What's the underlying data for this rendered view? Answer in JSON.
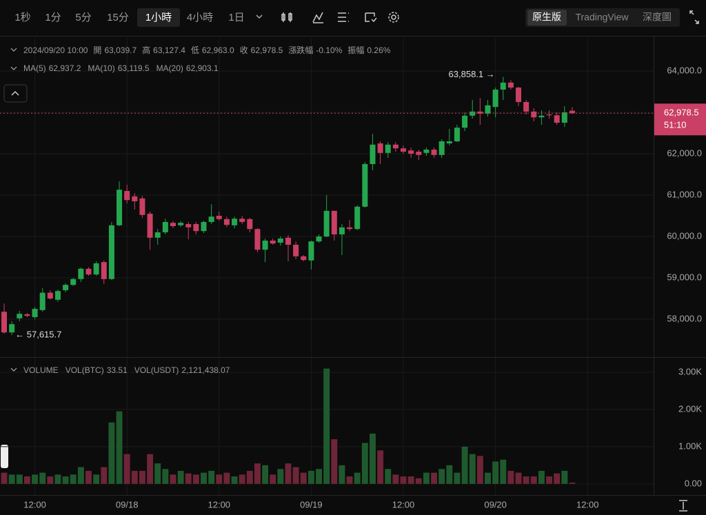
{
  "toolbar": {
    "intervals": [
      "1秒",
      "1分",
      "5分",
      "15分",
      "1小時",
      "4小時",
      "1日"
    ],
    "active_interval": 4,
    "views": [
      "原生版",
      "TradingView",
      "深度圖"
    ],
    "active_view": 0
  },
  "chart_data": {
    "type": "candlestick",
    "info": {
      "time": "2024/09/20 10:00",
      "fields": [
        {
          "label": "開",
          "value": "63,039.7"
        },
        {
          "label": "高",
          "value": "63,127.4"
        },
        {
          "label": "低",
          "value": "62,963.0"
        },
        {
          "label": "收",
          "value": "62,978.5"
        },
        {
          "label": "漲跌幅",
          "value": "-0.10%"
        },
        {
          "label": "振幅",
          "value": "0.26%"
        }
      ]
    },
    "ma": [
      {
        "name": "MA(5)",
        "value": "62,937.2",
        "color": "#f0a431"
      },
      {
        "name": "MA(10)",
        "value": "63,119.5",
        "color": "#e0456b"
      },
      {
        "name": "MA(20)",
        "value": "62,903.1",
        "color": "#3fb8d8"
      }
    ],
    "volume_legend": {
      "title": "VOLUME",
      "fields": [
        {
          "label": "VOL(BTC)",
          "value": "33.51"
        },
        {
          "label": "VOL(USDT)",
          "value": "2,121,438.07"
        }
      ]
    },
    "open": [
      58180,
      57680,
      58020,
      58120,
      58050,
      58220,
      58640,
      58470,
      58700,
      58830,
      58970,
      59220,
      59080,
      59380,
      58970,
      60270,
      61100,
      60970,
      60920,
      60550,
      59970,
      60100,
      60330,
      60270,
      60300,
      60300,
      60130,
      60350,
      60500,
      60420,
      60270,
      60430,
      60420,
      60180,
      59680,
      59900,
      59850,
      59970,
      59800,
      59520,
      59420,
      59880,
      60000,
      60620,
      60050,
      60220,
      60180,
      60720,
      61750,
      62250,
      62020,
      62220,
      62130,
      62080,
      62050,
      62020,
      62100,
      61970,
      62250,
      62300,
      62630,
      62920,
      63020,
      62970,
      63130,
      63550,
      63720,
      63600,
      63250,
      63020,
      62880,
      62950,
      62930,
      62750,
      63039.7
    ],
    "high": [
      58380,
      57950,
      58200,
      58150,
      58300,
      58750,
      58700,
      58720,
      58870,
      59000,
      59250,
      59260,
      59400,
      59420,
      60350,
      61330,
      61250,
      61050,
      60980,
      60600,
      60180,
      60430,
      60370,
      60370,
      60350,
      60350,
      60380,
      60780,
      60600,
      60480,
      60480,
      60500,
      60450,
      60200,
      59950,
      59950,
      60000,
      60030,
      59880,
      59550,
      59900,
      60050,
      61000,
      60620,
      60300,
      60400,
      60750,
      61800,
      62480,
      62300,
      62280,
      62280,
      62200,
      62150,
      62100,
      62150,
      62150,
      62350,
      62600,
      62700,
      63000,
      63300,
      63350,
      63300,
      63600,
      63858.1,
      63780,
      63620,
      63300,
      63100,
      63050,
      63050,
      63000,
      63150,
      63127.4
    ],
    "low": [
      57650,
      57615.7,
      57950,
      58050,
      58000,
      58180,
      58470,
      58420,
      58650,
      58800,
      58900,
      59050,
      59050,
      58850,
      58950,
      60250,
      60800,
      60650,
      60450,
      59680,
      59800,
      60050,
      60200,
      60230,
      59930,
      60050,
      60080,
      60300,
      60380,
      60230,
      60200,
      60300,
      60100,
      59620,
      59380,
      59800,
      59780,
      59400,
      59450,
      59400,
      59200,
      59850,
      59980,
      59900,
      59550,
      60130,
      60150,
      60700,
      61600,
      61750,
      61900,
      62050,
      62000,
      61900,
      61850,
      61950,
      61900,
      61900,
      62200,
      62280,
      62550,
      62850,
      62700,
      62900,
      62880,
      63300,
      63550,
      63150,
      62950,
      62780,
      62700,
      62850,
      62700,
      62650,
      62963.0
    ],
    "close": [
      57680,
      57880,
      58130,
      58080,
      58250,
      58640,
      58500,
      58680,
      58830,
      58970,
      59220,
      59080,
      59350,
      58970,
      60270,
      61130,
      60880,
      60850,
      60520,
      59970,
      60100,
      60350,
      60250,
      60330,
      60220,
      60130,
      60350,
      60480,
      60420,
      60280,
      60430,
      60350,
      60180,
      59680,
      59900,
      59830,
      59950,
      59800,
      59520,
      59430,
      59880,
      60000,
      60620,
      60050,
      60220,
      60180,
      60720,
      61750,
      62220,
      62020,
      62220,
      62130,
      62050,
      62000,
      61970,
      62100,
      61970,
      62300,
      62300,
      62630,
      62920,
      63020,
      62970,
      63170,
      63550,
      63720,
      63600,
      63250,
      63020,
      62880,
      62920,
      62930,
      62750,
      63000,
      62978.5
    ],
    "volume": [
      300,
      250,
      250,
      200,
      250,
      300,
      200,
      250,
      200,
      250,
      450,
      350,
      250,
      450,
      1650,
      1950,
      800,
      350,
      350,
      800,
      550,
      400,
      250,
      350,
      280,
      250,
      300,
      350,
      250,
      300,
      200,
      250,
      350,
      550,
      500,
      250,
      400,
      550,
      450,
      300,
      350,
      400,
      3100,
      1200,
      500,
      200,
      300,
      1100,
      1350,
      900,
      400,
      250,
      200,
      200,
      150,
      300,
      300,
      400,
      500,
      300,
      1000,
      800,
      750,
      300,
      600,
      650,
      350,
      300,
      200,
      200,
      350,
      200,
      280,
      350,
      33.51
    ],
    "up_color": "#25a750",
    "down_color": "#ca3f64",
    "volume_up_color": "#1f5a2e",
    "volume_down_color": "#6e2538",
    "xlim": [
      -0.54,
      84.6
    ],
    "xticks": [
      {
        "value": 4,
        "label": "12:00"
      },
      {
        "value": 16,
        "label": "09/18"
      },
      {
        "value": 28,
        "label": "12:00"
      },
      {
        "value": 40,
        "label": "09/19"
      },
      {
        "value": 52,
        "label": "12:00"
      },
      {
        "value": 64,
        "label": "09/20"
      },
      {
        "value": 76,
        "label": "12:00"
      }
    ],
    "ylim": [
      57083,
      64800
    ],
    "yticks": [
      {
        "value": 58000,
        "label": "58,000.0"
      },
      {
        "value": 59000,
        "label": "59,000.0"
      },
      {
        "value": 60000,
        "label": "60,000.0"
      },
      {
        "value": 61000,
        "label": "61,000.0"
      },
      {
        "value": 62000,
        "label": "62,000.0"
      },
      {
        "value": 63000,
        "label": "63,000.0"
      },
      {
        "value": 64000,
        "label": "64,000.0"
      }
    ],
    "vol_ylim": [
      -300,
      3370
    ],
    "vol_ticks": [
      {
        "value": 0,
        "label": "0.00"
      },
      {
        "value": 1000,
        "label": "1.00K"
      },
      {
        "value": 2000,
        "label": "2.00K"
      },
      {
        "value": 3000,
        "label": "3.00K"
      }
    ],
    "high_label": "63,858.1 →",
    "low_label": "← 57,615.7",
    "price_tag": {
      "price": "62,978.5",
      "countdown": "51:10"
    },
    "grid": true
  }
}
